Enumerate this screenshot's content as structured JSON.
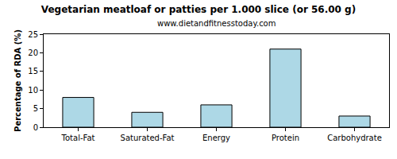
{
  "chart_data": {
    "type": "bar",
    "title": "Vegetarian meatloaf or patties per 1.000 slice (or 56.00 g)",
    "subtitle": "www.dietandfitnesstoday.com",
    "y_label": "Percentage of RDA (%)",
    "categories": [
      "Total-Fat",
      "Saturated-Fat",
      "Energy",
      "Protein",
      "Carbohydrate"
    ],
    "values": [
      8,
      4,
      6,
      21,
      3
    ],
    "color": "#add8e6",
    "ylim": [
      0,
      25
    ],
    "yticks": [
      0,
      5,
      10,
      15,
      20,
      25
    ],
    "grid": false
  }
}
